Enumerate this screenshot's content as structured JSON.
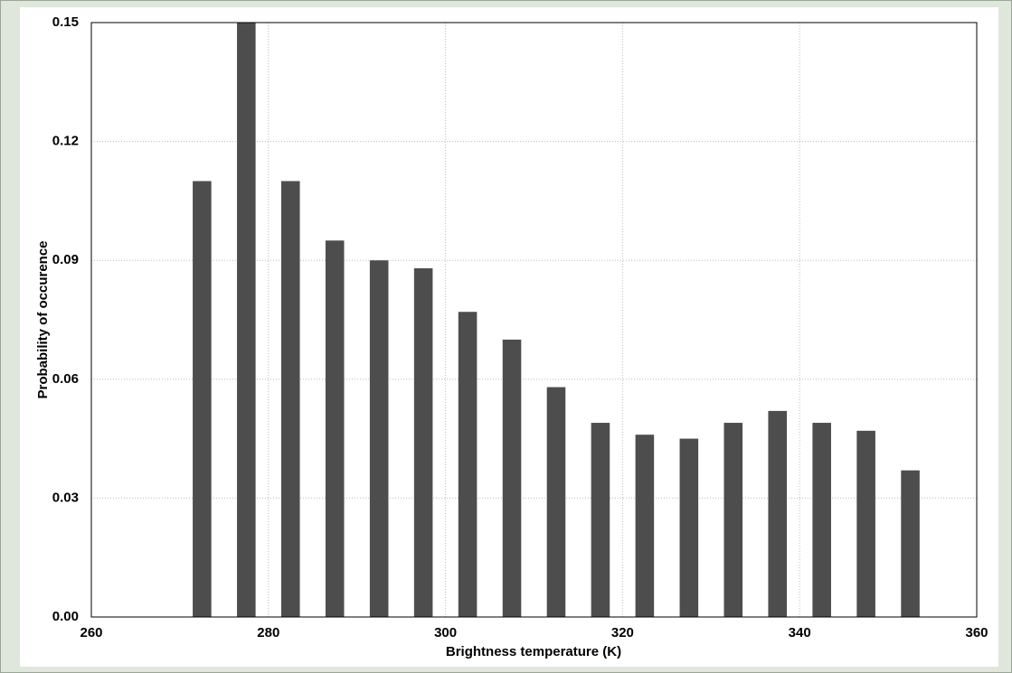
{
  "chart_data": {
    "type": "histogram",
    "ylabel": "Probability of occurence",
    "xlabel": "Brightness temperature (K)",
    "bins": [
      270,
      275,
      280,
      285,
      290,
      295,
      300,
      305,
      310,
      315,
      320,
      325,
      330,
      335,
      340,
      345,
      350,
      355
    ],
    "values": [
      0.11,
      0.15,
      0.11,
      0.095,
      0.09,
      0.088,
      0.077,
      0.07,
      0.058,
      0.049,
      0.046,
      0.045,
      0.049,
      0.052,
      0.049,
      0.047,
      0.037
    ],
    "color": "#4d4d4d",
    "xlim": [
      260,
      360
    ],
    "xticks": [
      260,
      280,
      300,
      320,
      340,
      360
    ],
    "ylim": [
      0,
      0.15
    ],
    "yticks": [
      {
        "value": 0,
        "label": "0.00"
      },
      0.03,
      0.06,
      0.09,
      0.12,
      0.15
    ],
    "grid": true
  }
}
